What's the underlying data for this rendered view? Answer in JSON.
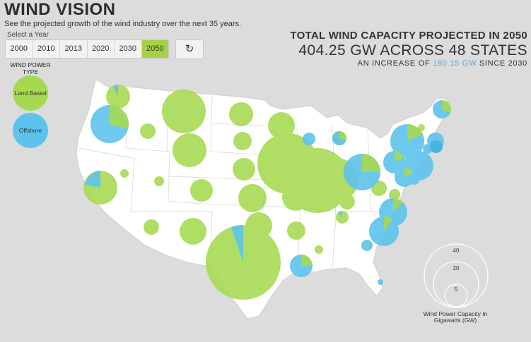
{
  "header": {
    "title": "WIND VISION",
    "subtitle": "See the projected growth of the wind industry over the next 35 years."
  },
  "year_selector": {
    "label": "Select a Year",
    "years": [
      "2000",
      "2010",
      "2013",
      "2020",
      "2030",
      "2050"
    ],
    "selected": "2050",
    "reset_glyph": "↻"
  },
  "type_legend": {
    "title": "WIND POWER TYPE",
    "land_label": "Land Based",
    "offshore_label": "Offshore"
  },
  "summary": {
    "line1": "TOTAL WIND CAPACITY PROJECTED IN 2050",
    "line2": "404.25 GW ACROSS 48 STATES",
    "line3_pre": "AN INCREASE OF ",
    "line3_value": "180.15 GW",
    "line3_post": " SINCE 2030"
  },
  "size_legend": {
    "values": [
      "40",
      "20",
      "5"
    ],
    "caption": "Wind Power Capacity In Gigawatts (GW)"
  },
  "colors": {
    "land": "#a6d94f",
    "offshore": "#5dc3ec",
    "active_year": "#a6d048",
    "accent": "#5aa8d8",
    "map_fill": "#ffffff",
    "background": "#dcdcdc"
  }
}
